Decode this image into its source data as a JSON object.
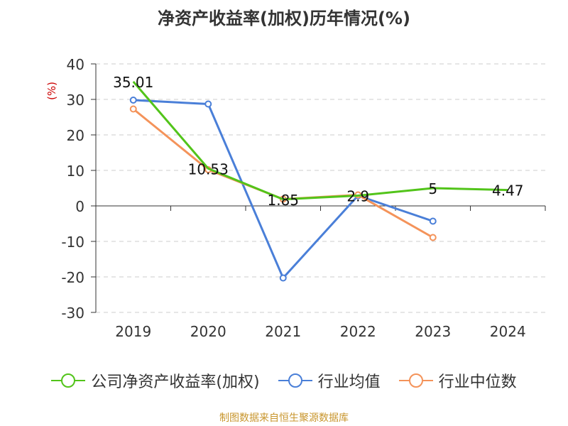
{
  "title": "净资产收益率(加权)历年情况(%)",
  "ylabel": "(%)",
  "source": "制图数据来自恒生聚源数据库",
  "colors": {
    "company": "#52c41a",
    "industry_avg": "#4a7fd8",
    "industry_median": "#f4935a",
    "grid": "#cccccc",
    "axis": "#333333",
    "ylabel": "#cc0000"
  },
  "legend": [
    {
      "label": "公司净资产收益率(加权)",
      "color": "#52c41a"
    },
    {
      "label": "行业均值",
      "color": "#4a7fd8"
    },
    {
      "label": "行业中位数",
      "color": "#f4935a"
    }
  ],
  "chart_data": {
    "type": "line",
    "title": "净资产收益率(加权)历年情况(%)",
    "ylabel": "(%)",
    "categories": [
      "2019",
      "2020",
      "2021",
      "2022",
      "2023",
      "2024"
    ],
    "ylim": [
      -30,
      40
    ],
    "yticks": [
      40,
      30,
      20,
      10,
      0,
      -10,
      -20,
      -30
    ],
    "grid": true,
    "legend_position": "bottom",
    "series": [
      {
        "name": "公司净资产收益率(加权)",
        "color": "#52c41a",
        "markers": false,
        "values": [
          35.01,
          10.53,
          1.85,
          2.9,
          5,
          4.47
        ],
        "labels": [
          "35.01",
          "10.53",
          "1.85",
          "2.9",
          "5",
          "4.47"
        ]
      },
      {
        "name": "行业均值",
        "color": "#4a7fd8",
        "markers": true,
        "values": [
          29.8,
          28.7,
          -20.3,
          2.9,
          -4.3,
          null
        ]
      },
      {
        "name": "行业中位数",
        "color": "#f4935a",
        "markers": true,
        "values": [
          27.3,
          10.2,
          1.9,
          3.1,
          -8.9,
          null
        ]
      }
    ]
  }
}
